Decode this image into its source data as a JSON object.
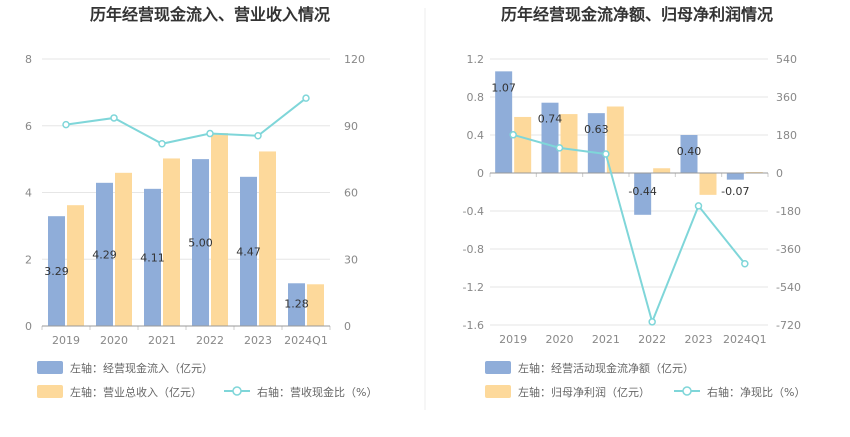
{
  "colors": {
    "bar_primary": "#8fadd9",
    "bar_secondary": "#fdd99b",
    "line": "#7fd6d9",
    "grid": "#e6e6e6",
    "axis": "#cccccc",
    "text": "#888888"
  },
  "chart_data": [
    {
      "type": "bar",
      "title": "历年经营现金流入、营业收入情况",
      "categories": [
        "2019",
        "2020",
        "2021",
        "2022",
        "2023",
        "2024Q1"
      ],
      "left_axis": {
        "min": 0,
        "max": 8,
        "ticks": [
          "0",
          "2",
          "4",
          "6",
          "8"
        ]
      },
      "right_axis": {
        "min": 0,
        "max": 120,
        "ticks": [
          "0",
          "30",
          "60",
          "90",
          "120"
        ]
      },
      "series": [
        {
          "name": "左轴：经营现金流入（亿元）",
          "kind": "bar",
          "axis": "left",
          "values": [
            3.29,
            4.29,
            4.11,
            5.0,
            4.47,
            1.28
          ],
          "labels": [
            "3.29",
            "4.29",
            "4.11",
            "5.00",
            "4.47",
            "1.28"
          ]
        },
        {
          "name": "左轴：营业总收入（亿元）",
          "kind": "bar",
          "axis": "left",
          "values": [
            3.62,
            4.59,
            5.02,
            5.78,
            5.23,
            1.25
          ]
        },
        {
          "name": "右轴：营收现金比（%）",
          "kind": "line",
          "axis": "right",
          "values": [
            90.5,
            93.5,
            81.9,
            86.5,
            85.5,
            102.4
          ]
        }
      ],
      "grid": true,
      "legend_position": "bottom-left"
    },
    {
      "type": "bar",
      "title": "历年经营现金流净额、归母净利润情况",
      "categories": [
        "2019",
        "2020",
        "2021",
        "2022",
        "2023",
        "2024Q1"
      ],
      "left_axis": {
        "min": -1.6,
        "max": 1.2,
        "ticks": [
          "-1.6",
          "-1.2",
          "-0.8",
          "-0.4",
          "0",
          "0.4",
          "0.8",
          "1.2"
        ]
      },
      "right_axis": {
        "min": -720,
        "max": 540,
        "ticks": [
          "-720",
          "-540",
          "-360",
          "-180",
          "0",
          "180",
          "360",
          "540"
        ]
      },
      "series": [
        {
          "name": "左轴：经营活动现金流净额（亿元）",
          "kind": "bar",
          "axis": "left",
          "values": [
            1.07,
            0.74,
            0.63,
            -0.44,
            0.4,
            -0.07
          ],
          "labels": [
            "1.07",
            "0.74",
            "0.63",
            "-0.44",
            "0.40",
            "-0.07"
          ]
        },
        {
          "name": "左轴：归母净利润（亿元）",
          "kind": "bar",
          "axis": "left",
          "values": [
            0.59,
            0.62,
            0.7,
            0.05,
            -0.23,
            0.01
          ]
        },
        {
          "name": "右轴：净现比（%）",
          "kind": "line",
          "axis": "right",
          "values": [
            181,
            119,
            90,
            -705,
            -156,
            -430
          ]
        }
      ],
      "grid": true,
      "legend_position": "bottom-left"
    }
  ]
}
